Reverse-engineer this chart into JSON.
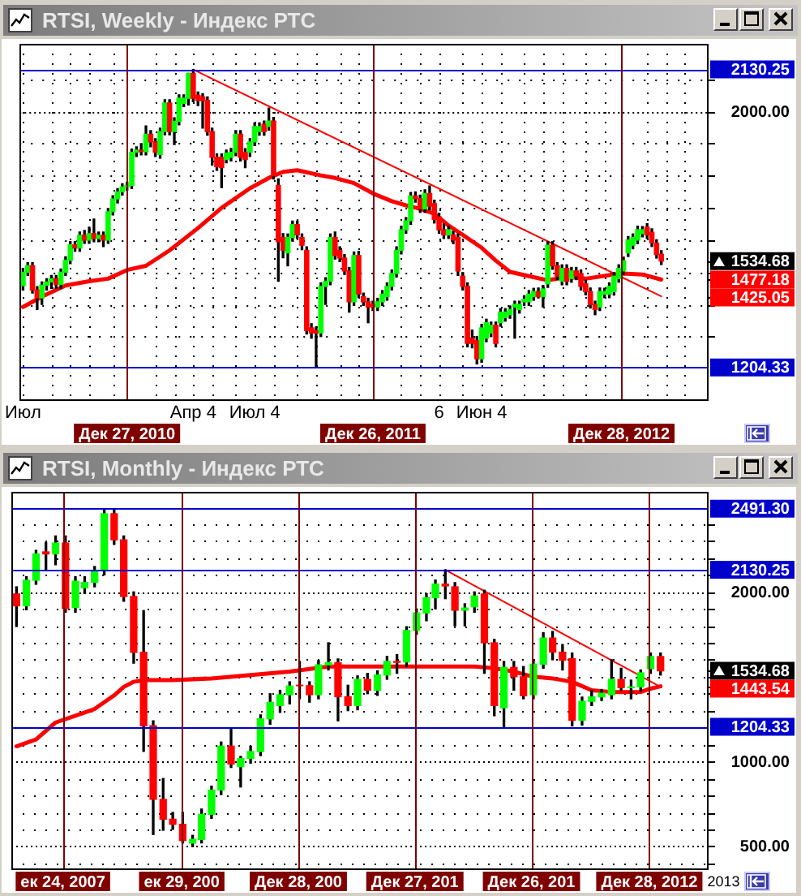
{
  "chart_data": [
    {
      "type": "candlestick",
      "title": "RTSI, Weekly - Индекс РТС",
      "x": [
        "2010-07-26",
        "2010-08-02",
        "2010-08-09",
        "2010-08-16",
        "2010-08-23",
        "2010-08-30",
        "2010-09-06",
        "2010-09-13",
        "2010-09-20",
        "2010-09-27",
        "2010-10-04",
        "2010-10-11",
        "2010-10-18",
        "2010-10-25",
        "2010-11-01",
        "2010-11-08",
        "2010-11-15",
        "2010-11-22",
        "2010-11-29",
        "2010-12-06",
        "2010-12-13",
        "2010-12-20",
        "2010-12-27",
        "2011-01-03",
        "2011-01-10",
        "2011-01-17",
        "2011-01-24",
        "2011-01-31",
        "2011-02-07",
        "2011-02-14",
        "2011-02-21",
        "2011-02-28",
        "2011-03-07",
        "2011-03-14",
        "2011-03-21",
        "2011-03-28",
        "2011-04-04",
        "2011-04-11",
        "2011-04-18",
        "2011-04-25",
        "2011-05-02",
        "2011-05-09",
        "2011-05-16",
        "2011-05-23",
        "2011-05-30",
        "2011-06-06",
        "2011-06-13",
        "2011-06-20",
        "2011-06-27",
        "2011-07-04",
        "2011-07-11",
        "2011-07-18",
        "2011-07-25",
        "2011-08-01",
        "2011-08-08",
        "2011-08-15",
        "2011-08-22",
        "2011-08-29",
        "2011-09-05",
        "2011-09-12",
        "2011-09-19",
        "2011-09-26",
        "2011-10-03",
        "2011-10-10",
        "2011-10-17",
        "2011-10-24",
        "2011-10-31",
        "2011-11-07",
        "2011-11-14",
        "2011-11-21",
        "2011-11-28",
        "2011-12-05",
        "2011-12-12",
        "2011-12-19",
        "2011-12-26",
        "2012-01-02",
        "2012-01-09",
        "2012-01-16",
        "2012-01-23",
        "2012-01-30",
        "2012-02-06",
        "2012-02-13",
        "2012-02-20",
        "2012-02-27",
        "2012-03-05",
        "2012-03-12",
        "2012-03-19",
        "2012-03-26",
        "2012-04-02",
        "2012-04-09",
        "2012-04-16",
        "2012-04-23",
        "2012-04-30",
        "2012-05-07",
        "2012-05-14",
        "2012-05-21",
        "2012-05-28",
        "2012-06-04",
        "2012-06-11",
        "2012-06-18",
        "2012-06-25",
        "2012-07-02",
        "2012-07-09",
        "2012-07-16",
        "2012-07-23",
        "2012-07-30",
        "2012-08-06",
        "2012-08-13",
        "2012-08-20",
        "2012-08-27",
        "2012-09-03",
        "2012-09-10",
        "2012-09-17",
        "2012-09-24",
        "2012-10-01",
        "2012-10-08",
        "2012-10-15",
        "2012-10-22",
        "2012-10-29",
        "2012-11-05",
        "2012-11-12",
        "2012-11-19",
        "2012-11-26",
        "2012-12-03",
        "2012-12-10",
        "2012-12-17",
        "2012-12-24",
        "2012-12-31",
        "2013-01-07",
        "2013-01-14",
        "2013-01-21",
        "2013-01-28",
        "2013-02-04",
        "2013-02-11",
        "2013-02-18",
        "2013-02-25"
      ],
      "ohlc": [
        [
          1458,
          1512,
          1445,
          1500
        ],
        [
          1500,
          1530,
          1490,
          1520
        ],
        [
          1520,
          1530,
          1435,
          1445
        ],
        [
          1445,
          1455,
          1384,
          1420
        ],
        [
          1420,
          1470,
          1400,
          1460
        ],
        [
          1460,
          1480,
          1445,
          1470
        ],
        [
          1470,
          1490,
          1450,
          1480
        ],
        [
          1480,
          1490,
          1450,
          1462
        ],
        [
          1462,
          1510,
          1450,
          1500
        ],
        [
          1500,
          1548,
          1490,
          1537
        ],
        [
          1537,
          1595,
          1527,
          1585
        ],
        [
          1585,
          1595,
          1565,
          1575
        ],
        [
          1575,
          1625,
          1565,
          1615
        ],
        [
          1615,
          1630,
          1590,
          1600
        ],
        [
          1600,
          1640,
          1590,
          1620
        ],
        [
          1620,
          1665,
          1595,
          1605
        ],
        [
          1605,
          1625,
          1595,
          1615
        ],
        [
          1615,
          1625,
          1580,
          1600
        ],
        [
          1600,
          1698,
          1590,
          1688
        ],
        [
          1688,
          1738,
          1678,
          1728
        ],
        [
          1728,
          1760,
          1715,
          1750
        ],
        [
          1750,
          1775,
          1740,
          1765
        ],
        [
          1765,
          1780,
          1755,
          1770
        ],
        [
          1770,
          1883,
          1760,
          1873
        ],
        [
          1873,
          1890,
          1860,
          1880
        ],
        [
          1880,
          1900,
          1865,
          1875
        ],
        [
          1875,
          1955,
          1865,
          1929
        ],
        [
          1929,
          1940,
          1890,
          1905
        ],
        [
          1905,
          1915,
          1860,
          1873
        ],
        [
          1866,
          1948,
          1855,
          1937
        ],
        [
          1937,
          2036,
          1927,
          2026
        ],
        [
          2026,
          2036,
          1927,
          1937
        ],
        [
          1937,
          1980,
          1897,
          1969
        ],
        [
          1969,
          2051,
          1958,
          2041
        ],
        [
          2025,
          2051,
          2015,
          2041
        ],
        [
          2041,
          2118,
          2020,
          2118
        ],
        [
          2118,
          2130.25,
          2030,
          2041
        ],
        [
          2050,
          2060,
          2018,
          2034
        ],
        [
          2045,
          2055,
          1948,
          2034
        ],
        [
          2034,
          2045,
          1926,
          1937
        ],
        [
          1937,
          1948,
          1833,
          1857
        ],
        [
          1857,
          1868,
          1817,
          1828
        ],
        [
          1857,
          1868,
          1763,
          1825
        ],
        [
          1850,
          1880,
          1840,
          1870
        ],
        [
          1857,
          1885,
          1846,
          1873
        ],
        [
          1873,
          1940,
          1862,
          1929
        ],
        [
          1929,
          1940,
          1846,
          1857
        ],
        [
          1873,
          1884,
          1825,
          1850
        ],
        [
          1873,
          1915,
          1860,
          1905
        ],
        [
          1905,
          1964,
          1894,
          1953
        ],
        [
          1937,
          1964,
          1926,
          1953
        ],
        [
          1960,
          1970,
          1926,
          1937
        ],
        [
          1953,
          2010,
          1942,
          1970
        ],
        [
          1970,
          1981,
          1790,
          1800
        ],
        [
          1770,
          1790,
          1472,
          1595
        ],
        [
          1608,
          1620,
          1545,
          1568
        ],
        [
          1560,
          1619,
          1520,
          1608
        ],
        [
          1608,
          1659,
          1597,
          1648
        ],
        [
          1648,
          1659,
          1605,
          1616
        ],
        [
          1608,
          1619,
          1570,
          1584
        ],
        [
          1568,
          1579,
          1308,
          1319
        ],
        [
          1327,
          1340,
          1295,
          1311
        ],
        [
          1319,
          1330,
          1204.33,
          1311
        ],
        [
          1311,
          1467,
          1300,
          1456
        ],
        [
          1456,
          1483,
          1400,
          1472
        ],
        [
          1472,
          1619,
          1461,
          1608
        ],
        [
          1608,
          1625,
          1541,
          1552
        ],
        [
          1568,
          1579,
          1533,
          1544
        ],
        [
          1544,
          1555,
          1493,
          1504
        ],
        [
          1504,
          1515,
          1376,
          1408
        ],
        [
          1408,
          1563,
          1397,
          1552
        ],
        [
          1552,
          1565,
          1421,
          1432
        ],
        [
          1424,
          1435,
          1397,
          1408
        ],
        [
          1408,
          1419,
          1343,
          1392
        ],
        [
          1400,
          1410,
          1381,
          1392
        ],
        [
          1392,
          1419,
          1381,
          1408
        ],
        [
          1408,
          1443,
          1397,
          1432
        ],
        [
          1424,
          1467,
          1413,
          1456
        ],
        [
          1456,
          1507,
          1445,
          1496
        ],
        [
          1496,
          1579,
          1485,
          1568
        ],
        [
          1568,
          1643,
          1557,
          1632
        ],
        [
          1632,
          1670,
          1621,
          1660
        ],
        [
          1660,
          1748,
          1649,
          1737
        ],
        [
          1737,
          1750,
          1718,
          1729
        ],
        [
          1729,
          1740,
          1686,
          1697
        ],
        [
          1697,
          1756,
          1686,
          1745
        ],
        [
          1745,
          1768,
          1694,
          1705
        ],
        [
          1713,
          1724,
          1653,
          1664
        ],
        [
          1672,
          1683,
          1621,
          1632
        ],
        [
          1632,
          1650,
          1605,
          1616
        ],
        [
          1616,
          1643,
          1605,
          1632
        ],
        [
          1616,
          1627,
          1589,
          1600
        ],
        [
          1608,
          1619,
          1490,
          1504
        ],
        [
          1488,
          1499,
          1445,
          1456
        ],
        [
          1456,
          1467,
          1268,
          1279
        ],
        [
          1295,
          1320,
          1265,
          1279
        ],
        [
          1287,
          1300,
          1215,
          1231
        ],
        [
          1231,
          1338,
          1220,
          1327
        ],
        [
          1295,
          1354,
          1284,
          1343
        ],
        [
          1311,
          1345,
          1300,
          1335
        ],
        [
          1335,
          1345,
          1268,
          1279
        ],
        [
          1343,
          1387,
          1332,
          1376
        ],
        [
          1359,
          1387,
          1348,
          1376
        ],
        [
          1368,
          1395,
          1357,
          1384
        ],
        [
          1392,
          1410,
          1295,
          1400
        ],
        [
          1384,
          1410,
          1373,
          1400
        ],
        [
          1408,
          1427,
          1397,
          1416
        ],
        [
          1408,
          1443,
          1397,
          1432
        ],
        [
          1424,
          1450,
          1413,
          1440
        ],
        [
          1440,
          1451,
          1420,
          1424
        ],
        [
          1424,
          1459,
          1392,
          1448
        ],
        [
          1464,
          1595,
          1453,
          1584
        ],
        [
          1584,
          1595,
          1509,
          1520
        ],
        [
          1520,
          1530,
          1477,
          1488
        ],
        [
          1472,
          1523,
          1461,
          1512
        ],
        [
          1512,
          1523,
          1461,
          1472
        ],
        [
          1480,
          1515,
          1469,
          1504
        ],
        [
          1504,
          1515,
          1477,
          1488
        ],
        [
          1496,
          1507,
          1445,
          1456
        ],
        [
          1464,
          1475,
          1430,
          1440
        ],
        [
          1440,
          1451,
          1389,
          1400
        ],
        [
          1400,
          1410,
          1368,
          1384
        ],
        [
          1392,
          1451,
          1381,
          1440
        ],
        [
          1432,
          1450,
          1421,
          1440
        ],
        [
          1432,
          1467,
          1421,
          1456
        ],
        [
          1440,
          1499,
          1429,
          1488
        ],
        [
          1480,
          1523,
          1469,
          1512
        ],
        [
          1504,
          1547,
          1493,
          1536
        ],
        [
          1560,
          1611,
          1549,
          1600
        ],
        [
          1584,
          1619,
          1573,
          1608
        ],
        [
          1600,
          1643,
          1589,
          1632
        ],
        [
          1620,
          1642,
          1610,
          1632
        ],
        [
          1640,
          1651,
          1605,
          1616
        ],
        [
          1624,
          1635,
          1580,
          1592
        ],
        [
          1590,
          1601,
          1544,
          1555
        ],
        [
          1556,
          1567,
          1524,
          1534.68
        ]
      ],
      "series": [
        {
          "type": "line",
          "color": "#ff0000",
          "x": [
            "2010-07-26",
            "2010-08-23",
            "2010-09-27",
            "2010-11-01",
            "2010-11-29",
            "2010-12-27",
            "2011-01-24",
            "2011-02-28",
            "2011-04-11",
            "2011-05-16",
            "2011-06-27",
            "2011-07-25",
            "2011-08-15",
            "2011-09-05",
            "2011-10-10",
            "2011-10-31",
            "2011-11-28",
            "2011-12-26",
            "2012-01-23",
            "2012-02-13",
            "2012-03-05",
            "2012-03-26",
            "2012-04-16",
            "2012-05-07",
            "2012-06-04",
            "2012-06-25",
            "2012-07-16",
            "2012-08-13",
            "2012-09-10",
            "2012-10-08",
            "2012-11-05",
            "2012-12-10",
            "2012-12-31",
            "2013-01-28",
            "2013-02-25"
          ],
          "values": [
            1392,
            1424,
            1459,
            1472,
            1480,
            1507,
            1520,
            1568,
            1637,
            1700,
            1761,
            1793,
            1812,
            1817,
            1801,
            1793,
            1777,
            1745,
            1721,
            1708,
            1697,
            1682,
            1645,
            1616,
            1576,
            1536,
            1501,
            1488,
            1475,
            1485,
            1480,
            1491,
            1496,
            1493,
            1477.18
          ]
        },
        {
          "type": "line",
          "color": "#ff0000",
          "x": [
            "2011-04-04",
            "2013-02-25"
          ],
          "values": [
            2130,
            1425.05
          ]
        }
      ],
      "xlim": [
        "2010-07-21",
        "2013-05-06"
      ],
      "xticks": [
        {
          "value": "2010-07-26",
          "label": "Июл"
        },
        {
          "value": "2010-09-06",
          "label": null
        },
        {
          "value": "2010-10-04",
          "label": null
        },
        {
          "value": "2010-11-01",
          "label": null
        },
        {
          "value": "2010-12-06",
          "label": null
        },
        {
          "value": "2011-02-07",
          "label": null
        },
        {
          "value": "2011-03-07",
          "label": null
        },
        {
          "value": "2011-04-04",
          "label": "Апр 4"
        },
        {
          "value": "2011-05-02",
          "label": null
        },
        {
          "value": "2011-06-06",
          "label": null
        },
        {
          "value": "2011-07-04",
          "label": "Июл 4"
        },
        {
          "value": "2011-08-01",
          "label": null
        },
        {
          "value": "2011-09-05",
          "label": null
        },
        {
          "value": "2011-10-03",
          "label": null
        },
        {
          "value": "2011-11-07",
          "label": null
        },
        {
          "value": "2011-12-05",
          "label": null
        },
        {
          "value": "2012-02-06",
          "label": null
        },
        {
          "value": "2012-03-05",
          "label": null
        },
        {
          "value": "2012-04-02",
          "label": "6"
        },
        {
          "value": "2012-05-07",
          "label": null
        },
        {
          "value": "2012-06-04",
          "label": "Июн 4"
        },
        {
          "value": "2012-07-02",
          "label": null
        },
        {
          "value": "2012-08-06",
          "label": null
        },
        {
          "value": "2012-09-03",
          "label": null
        },
        {
          "value": "2012-10-01",
          "label": null
        },
        {
          "value": "2012-11-05",
          "label": null
        },
        {
          "value": "2012-12-03",
          "label": null
        },
        {
          "value": "2013-02-04",
          "label": null
        },
        {
          "value": "2013-03-04",
          "label": null
        },
        {
          "value": "2013-04-01",
          "label": null
        }
      ],
      "ylim": [
        1105,
        2210
      ],
      "yticks": [
        {
          "value": 1300,
          "label": null
        },
        {
          "value": 1400,
          "label": null
        },
        1425.05,
        1477.18,
        {
          "value": 1500,
          "label": null
        },
        1534.68,
        {
          "value": 1600,
          "label": null
        },
        {
          "value": 1700,
          "label": null
        },
        {
          "value": 1800,
          "label": null
        },
        {
          "value": 1900,
          "label": null
        },
        {
          "value": 2000,
          "label": "2000.00"
        },
        {
          "value": 2100,
          "label": null
        }
      ],
      "ref_lines": [
        {
          "axis": "y",
          "value": 2130.25,
          "label": "2130.25",
          "color": "#0000cc"
        },
        {
          "axis": "y",
          "value": 1204.33,
          "label": "1204.33",
          "color": "#0000cc"
        },
        {
          "axis": "x",
          "value": "2010-12-27",
          "label": "Дек 27, 2010",
          "color": "#800000"
        },
        {
          "axis": "x",
          "value": "2011-12-26",
          "label": "Дек 26, 2011",
          "color": "#800000"
        },
        {
          "axis": "x",
          "value": "2012-12-28",
          "label": "Дек 28, 2012",
          "color": "#800000"
        }
      ],
      "grid": true
    },
    {
      "type": "candlestick",
      "title": "RTSI, Monthly - Индекс РТС",
      "x": [
        "2007-08",
        "2007-09",
        "2007-10",
        "2007-11",
        "2007-12",
        "2008-01",
        "2008-02",
        "2008-03",
        "2008-04",
        "2008-05",
        "2008-06",
        "2008-07",
        "2008-08",
        "2008-09",
        "2008-10",
        "2008-11",
        "2008-12",
        "2009-01",
        "2009-02",
        "2009-03",
        "2009-04",
        "2009-05",
        "2009-06",
        "2009-07",
        "2009-08",
        "2009-09",
        "2009-10",
        "2009-11",
        "2009-12",
        "2010-01",
        "2010-02",
        "2010-03",
        "2010-04",
        "2010-05",
        "2010-06",
        "2010-07",
        "2010-08",
        "2010-09",
        "2010-10",
        "2010-11",
        "2010-12",
        "2011-01",
        "2011-02",
        "2011-03",
        "2011-04",
        "2011-05",
        "2011-06",
        "2011-07",
        "2011-08",
        "2011-09",
        "2011-10",
        "2011-11",
        "2011-12",
        "2012-01",
        "2012-02",
        "2012-03",
        "2012-04",
        "2012-05",
        "2012-06",
        "2012-07",
        "2012-08",
        "2012-09",
        "2012-10",
        "2012-11",
        "2012-12",
        "2013-01",
        "2013-02"
      ],
      "ohlc": [
        [
          1988,
          2030,
          1796,
          1918
        ],
        [
          1918,
          2090,
          1895,
          2069
        ],
        [
          2069,
          2245,
          2045,
          2224
        ],
        [
          2236,
          2290,
          2130,
          2224
        ],
        [
          2224,
          2330,
          2160,
          2288
        ],
        [
          2288,
          2330,
          1880,
          1902
        ],
        [
          1908,
          2090,
          1880,
          2063
        ],
        [
          2024,
          2090,
          1990,
          2056
        ],
        [
          2056,
          2150,
          2030,
          2127
        ],
        [
          2127,
          2491.3,
          2100,
          2461
        ],
        [
          2461,
          2485,
          2280,
          2307
        ],
        [
          2307,
          2330,
          1945,
          1973
        ],
        [
          1973,
          2000,
          1580,
          1644
        ],
        [
          1644,
          1890,
          1060,
          1211
        ],
        [
          1211,
          1240,
          570,
          777
        ],
        [
          777,
          900,
          595,
          660
        ],
        [
          660,
          700,
          600,
          630
        ],
        [
          630,
          700,
          520,
          534
        ],
        [
          519,
          565,
          498,
          541
        ],
        [
          541,
          720,
          520,
          689
        ],
        [
          689,
          855,
          665,
          832
        ],
        [
          832,
          1115,
          805,
          1091
        ],
        [
          1091,
          1190,
          965,
          985
        ],
        [
          970,
          1030,
          850,
          1018
        ],
        [
          1018,
          1090,
          990,
          1059
        ],
        [
          1059,
          1275,
          1035,
          1252
        ],
        [
          1252,
          1400,
          1220,
          1349
        ],
        [
          1330,
          1420,
          1290,
          1394
        ],
        [
          1394,
          1470,
          1340,
          1445
        ],
        [
          1450,
          1590,
          1370,
          1447
        ],
        [
          1447,
          1470,
          1350,
          1394
        ],
        [
          1394,
          1595,
          1370,
          1570
        ],
        [
          1570,
          1700,
          1540,
          1583
        ],
        [
          1583,
          1605,
          1240,
          1382
        ],
        [
          1382,
          1450,
          1300,
          1330
        ],
        [
          1330,
          1505,
          1305,
          1484
        ],
        [
          1484,
          1520,
          1400,
          1420
        ],
        [
          1420,
          1535,
          1390,
          1510
        ],
        [
          1510,
          1620,
          1485,
          1590
        ],
        [
          1590,
          1630,
          1520,
          1585
        ],
        [
          1587,
          1795,
          1560,
          1773
        ],
        [
          1773,
          1900,
          1750,
          1876
        ],
        [
          1876,
          1990,
          1830,
          1966
        ],
        [
          1966,
          2070,
          1900,
          2046
        ],
        [
          2046,
          2130.25,
          1960,
          2035
        ],
        [
          2030,
          2055,
          1800,
          1892
        ],
        [
          1892,
          1930,
          1800,
          1905
        ],
        [
          1912,
          2000,
          1880,
          1976
        ],
        [
          1988,
          2010,
          1520,
          1700
        ],
        [
          1700,
          1720,
          1270,
          1330
        ],
        [
          1317,
          1590,
          1204.33,
          1555
        ],
        [
          1555,
          1590,
          1420,
          1500
        ],
        [
          1500,
          1560,
          1370,
          1388
        ],
        [
          1394,
          1600,
          1370,
          1574
        ],
        [
          1574,
          1760,
          1550,
          1728
        ],
        [
          1728,
          1767,
          1600,
          1645
        ],
        [
          1645,
          1690,
          1540,
          1597
        ],
        [
          1607,
          1640,
          1210,
          1243
        ],
        [
          1243,
          1380,
          1215,
          1355
        ],
        [
          1355,
          1420,
          1330,
          1381
        ],
        [
          1381,
          1425,
          1360,
          1403
        ],
        [
          1394,
          1600,
          1370,
          1484
        ],
        [
          1484,
          1550,
          1420,
          1436
        ],
        [
          1436,
          1480,
          1370,
          1440
        ],
        [
          1440,
          1540,
          1415,
          1523
        ],
        [
          1548,
          1640,
          1520,
          1619
        ],
        [
          1619,
          1640,
          1510,
          1534.68
        ]
      ],
      "series": [
        {
          "type": "line",
          "color": "#ff0000",
          "x": [
            "2007-08",
            "2007-10",
            "2007-12",
            "2008-02",
            "2008-04",
            "2008-06",
            "2008-07",
            "2008-08",
            "2008-09",
            "2008-10",
            "2008-12",
            "2009-04",
            "2009-08",
            "2009-12",
            "2010-04",
            "2010-08",
            "2010-12",
            "2011-04",
            "2011-07",
            "2011-09",
            "2011-11",
            "2012-01",
            "2012-03",
            "2012-05",
            "2012-07",
            "2012-09",
            "2012-11",
            "2012-12",
            "2013-01",
            "2013-02"
          ],
          "values": [
            1090,
            1130,
            1230,
            1270,
            1310,
            1390,
            1440,
            1470,
            1480,
            1480,
            1480,
            1490,
            1510,
            1530,
            1560,
            1560,
            1560,
            1560,
            1560,
            1550,
            1530,
            1500,
            1490,
            1470,
            1420,
            1410,
            1410,
            1410,
            1430,
            1443.54
          ]
        },
        {
          "type": "line",
          "color": "#ff0000",
          "x": [
            "2011-04",
            "2013-02"
          ],
          "values": [
            2130,
            1440
          ]
        }
      ],
      "annotations": [
        "2013"
      ],
      "xlim": [
        "2007-07-16",
        "2013-07-01"
      ],
      "xticks": [
        {
          "value": "2007-12-24",
          "label": "ек 24, 2007"
        },
        {
          "value": "2008-12-29",
          "label": "ек 29, 200"
        },
        {
          "value": "2009-12-28",
          "label": "Дек 28, 200"
        },
        {
          "value": "2010-12-27",
          "label": "Дек 27, 201"
        },
        {
          "value": "2011-12-26",
          "label": "Дек 26, 201"
        },
        {
          "value": "2012-12-28",
          "label": "Дек 28, 2012"
        }
      ],
      "ylim": [
        370,
        2590
      ],
      "yticks": [
        {
          "value": 400,
          "label": null
        },
        {
          "value": 500,
          "label": "500.00"
        },
        {
          "value": 600,
          "label": null
        },
        {
          "value": 700,
          "label": null
        },
        {
          "value": 800,
          "label": null
        },
        {
          "value": 900,
          "label": null
        },
        {
          "value": 1000,
          "label": "1000.00"
        },
        {
          "value": 1100,
          "label": null
        },
        {
          "value": 1300,
          "label": null
        },
        {
          "value": 1400,
          "label": null
        },
        1443.54,
        {
          "value": 1500,
          "label": null
        },
        1534.68,
        {
          "value": 1600,
          "label": null
        },
        {
          "value": 1700,
          "label": null
        },
        {
          "value": 1800,
          "label": null
        },
        {
          "value": 1900,
          "label": null
        },
        {
          "value": 2000,
          "label": "2000.00"
        },
        {
          "value": 2100,
          "label": null
        },
        {
          "value": 2200,
          "label": null
        },
        {
          "value": 2300,
          "label": null
        },
        {
          "value": 2400,
          "label": null
        }
      ],
      "ref_lines": [
        {
          "axis": "y",
          "value": 2491.3,
          "label": "2491.30",
          "color": "#0000cc"
        },
        {
          "axis": "y",
          "value": 2130.25,
          "label": "2130.25",
          "color": "#0000cc"
        },
        {
          "axis": "y",
          "value": 1204.33,
          "label": "1204.33",
          "color": "#0000cc"
        },
        {
          "axis": "x",
          "value": "2007-12-24",
          "color": "#800000"
        },
        {
          "axis": "x",
          "value": "2008-12-29",
          "color": "#800000"
        },
        {
          "axis": "x",
          "value": "2009-12-28",
          "color": "#800000"
        },
        {
          "axis": "x",
          "value": "2010-12-27",
          "color": "#800000"
        },
        {
          "axis": "x",
          "value": "2011-12-26",
          "color": "#800000"
        },
        {
          "axis": "x",
          "value": "2012-12-28",
          "color": "#800000"
        }
      ],
      "grid": "y"
    }
  ]
}
